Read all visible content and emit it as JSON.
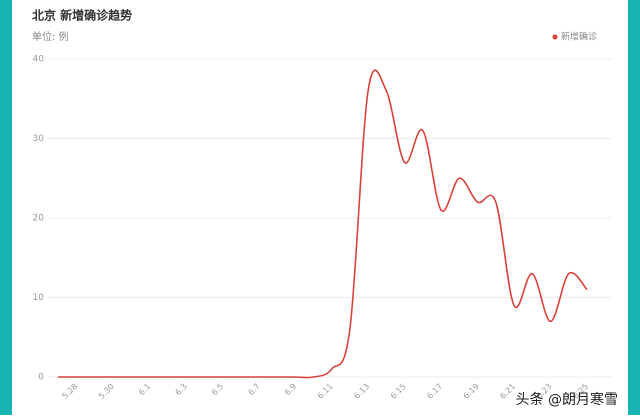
{
  "chart_data": {
    "type": "line",
    "title": "北京 新增确诊趋势",
    "subtitle": "单位: 例",
    "categories": [
      null,
      "5.28",
      null,
      "5.30",
      null,
      "6.1",
      null,
      "6.3",
      null,
      "6.5",
      null,
      "6.7",
      null,
      "6.9",
      null,
      "6.11",
      null,
      "6.13",
      null,
      "6.15",
      null,
      "6.17",
      null,
      "6.19",
      null,
      "6.21",
      null,
      "6.23",
      null,
      "6.25"
    ],
    "series": [
      {
        "name": "新增确诊",
        "color": "#d9413b",
        "values": [
          0,
          0,
          0,
          0,
          0,
          0,
          0,
          0,
          0,
          0,
          0,
          0,
          0,
          0,
          0,
          1,
          6,
          36,
          36,
          27,
          31,
          21,
          25,
          22,
          22,
          9,
          13,
          7,
          13,
          11
        ]
      }
    ],
    "ylim": [
      0,
      40
    ],
    "yticks": [
      0,
      10,
      20,
      30,
      40
    ],
    "grid": true,
    "legend": "top-right",
    "smooth": true,
    "watermark": "头条 @朗月寒雪"
  }
}
